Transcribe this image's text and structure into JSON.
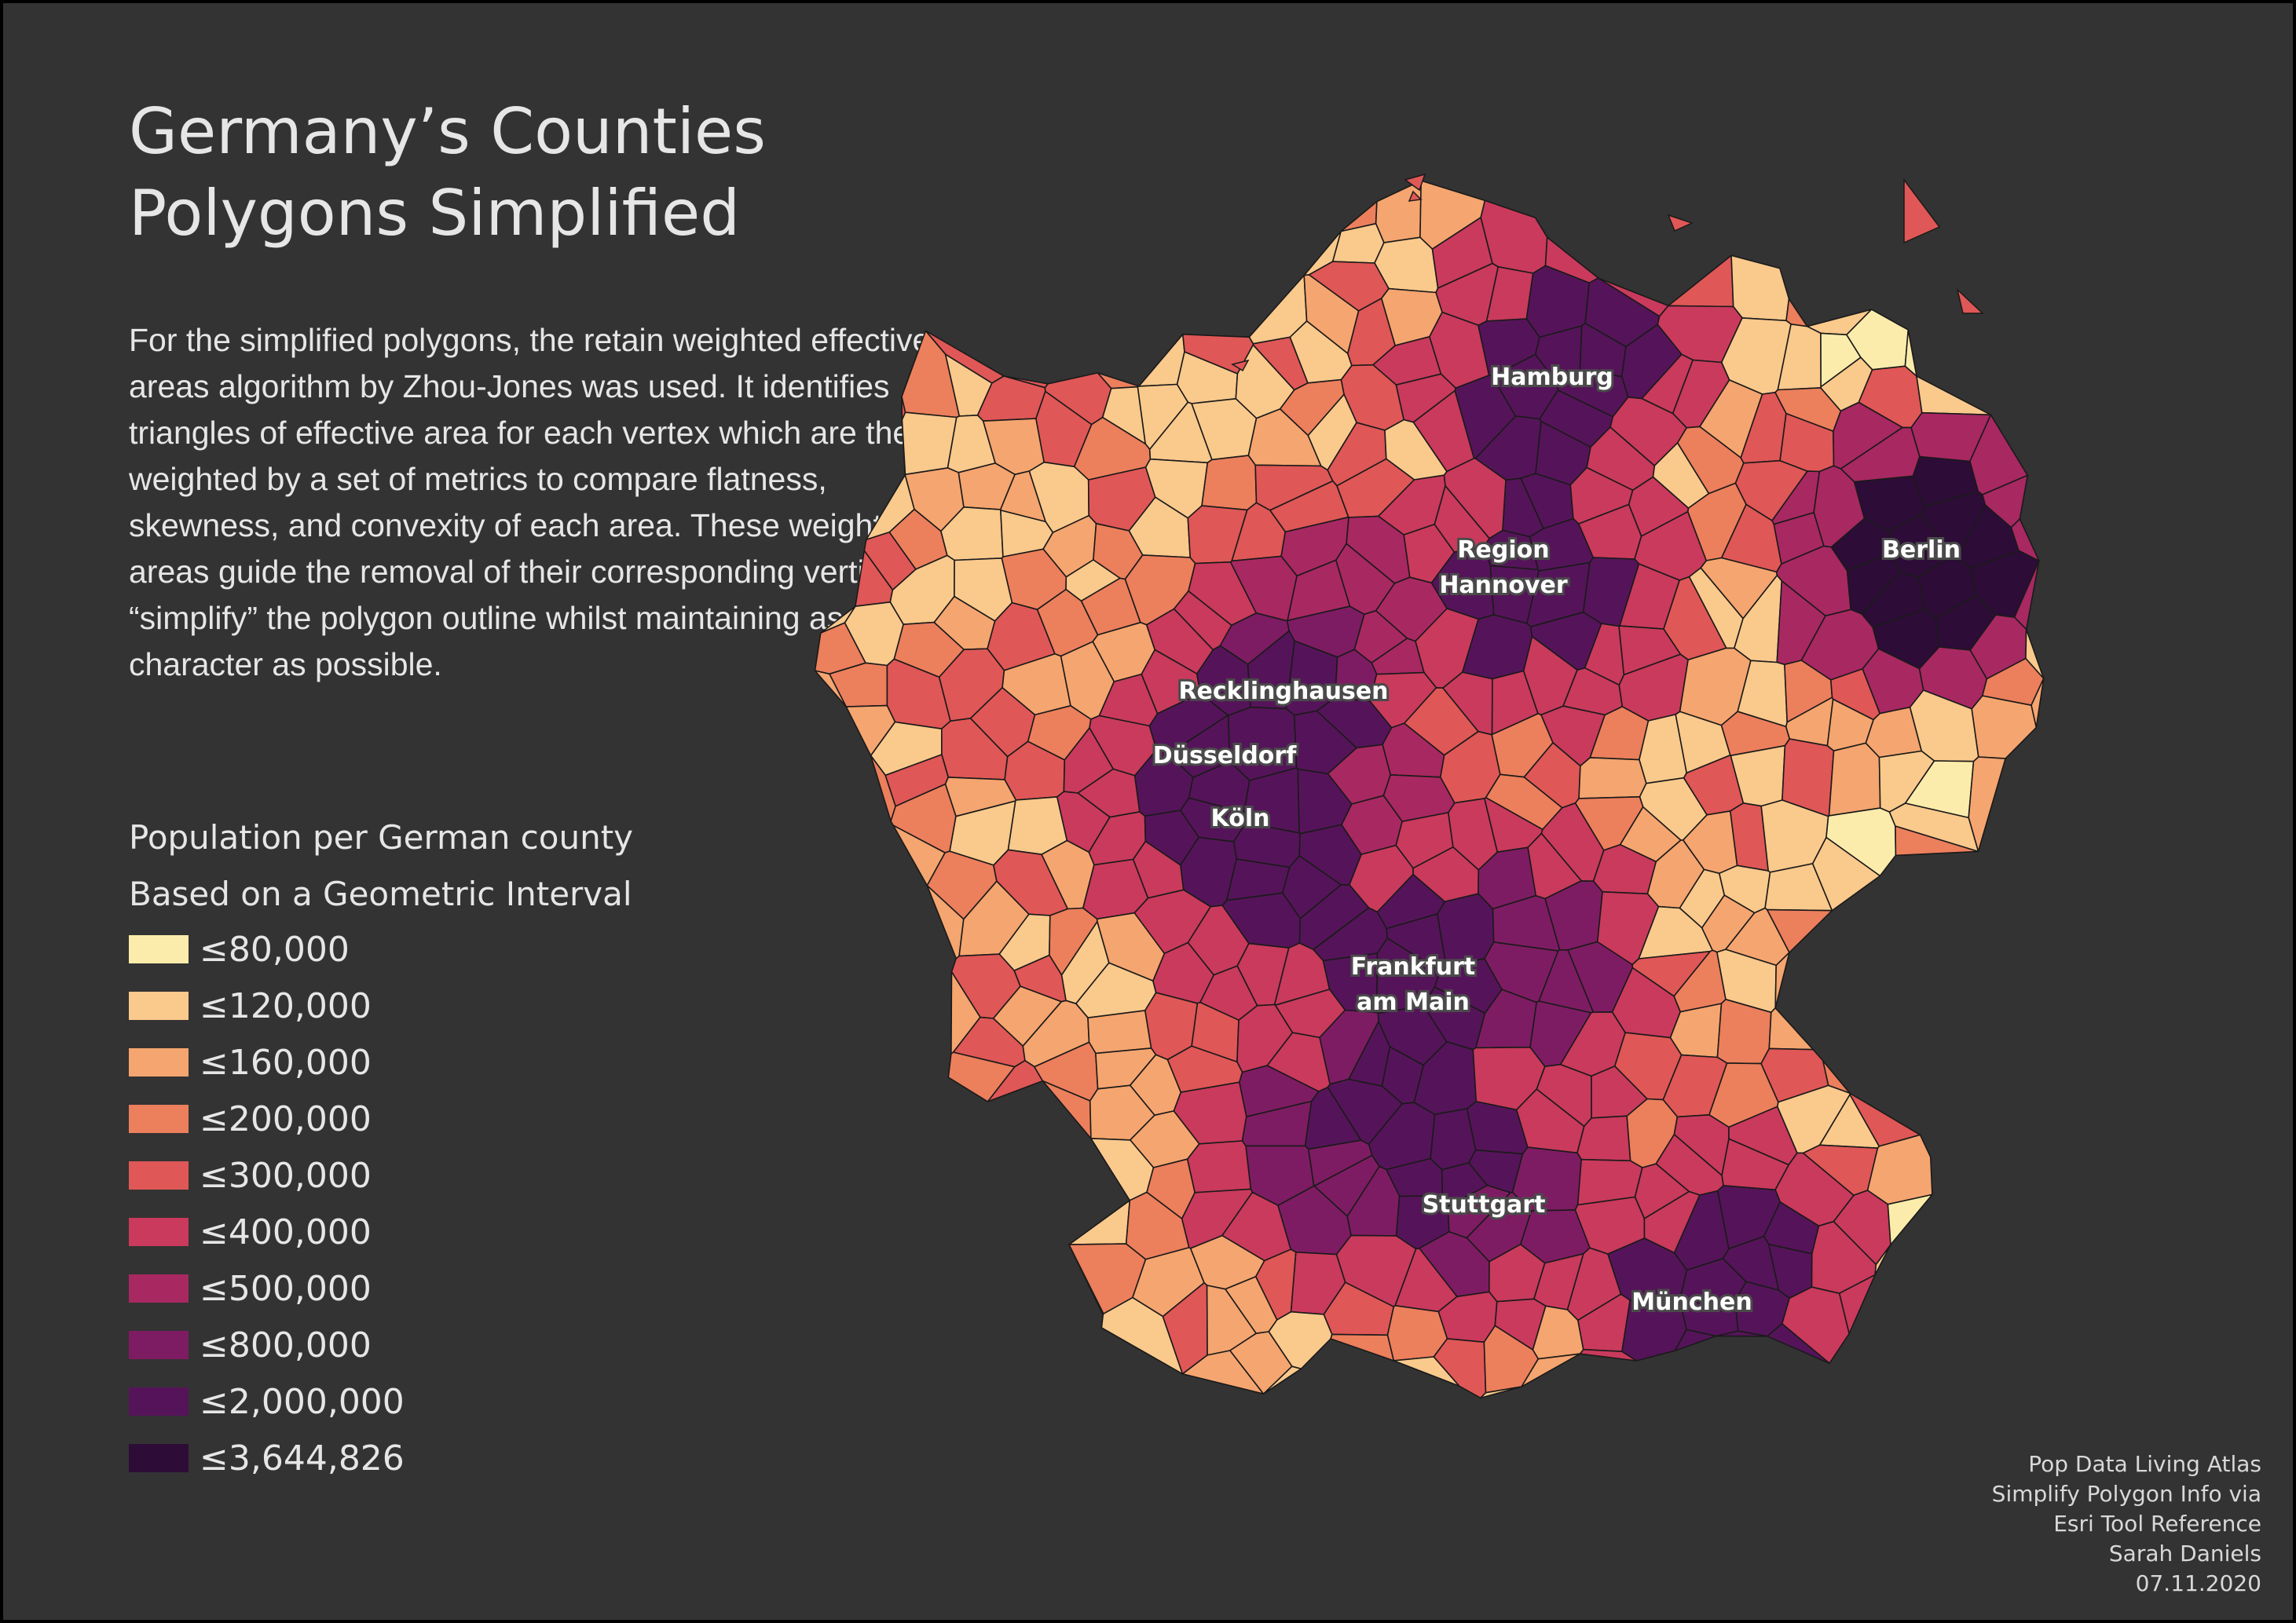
{
  "title": {
    "line1": "Germany’s Counties",
    "line2": "Polygons Simplified"
  },
  "description": [
    "For the simplified polygons, the retain weighted effective",
    "areas algorithm by Zhou-Jones was used. It identifies",
    "triangles of effective area for each vertex which are then",
    "weighted by a set of metrics to compare flatness,",
    "skewness, and convexity of each area. These weighted",
    "areas guide the removal of their corresponding vertices to",
    "“simplify” the polygon outline whilst maintaining as much",
    "character as possible."
  ],
  "legend": {
    "title1": "Population per German county",
    "title2": "Based on a Geometric Interval",
    "classes": [
      {
        "label": "≤80,000",
        "color": "#fcecab"
      },
      {
        "label": "≤120,000",
        "color": "#fac98c"
      },
      {
        "label": "≤160,000",
        "color": "#f5a56f"
      },
      {
        "label": "≤200,000",
        "color": "#ec7f5c"
      },
      {
        "label": "≤300,000",
        "color": "#df5756"
      },
      {
        "label": "≤400,000",
        "color": "#c93a5c"
      },
      {
        "label": "≤500,000",
        "color": "#a82862"
      },
      {
        "label": "≤800,000",
        "color": "#7e1c63"
      },
      {
        "label": "≤2,000,000",
        "color": "#551459"
      },
      {
        "label": "≤3,644,826",
        "color": "#2d0c37"
      }
    ]
  },
  "cities": [
    {
      "name": "Hamburg"
    },
    {
      "name": "Region Hannover"
    },
    {
      "name": "Berlin"
    },
    {
      "name": "Recklinghausen"
    },
    {
      "name": "Düsseldorf"
    },
    {
      "name": "Köln"
    },
    {
      "name": "Frankfurt am Main"
    },
    {
      "name": "Stuttgart"
    },
    {
      "name": "München"
    }
  ],
  "credits": [
    "Pop Data Living Atlas",
    "Simplify Polygon Info via",
    "Esri Tool Reference",
    "Sarah Daniels",
    "07.11.2020"
  ],
  "colors": {
    "background": "#333333",
    "text": "#e6e6e6",
    "outline": "#1a1a1a"
  }
}
